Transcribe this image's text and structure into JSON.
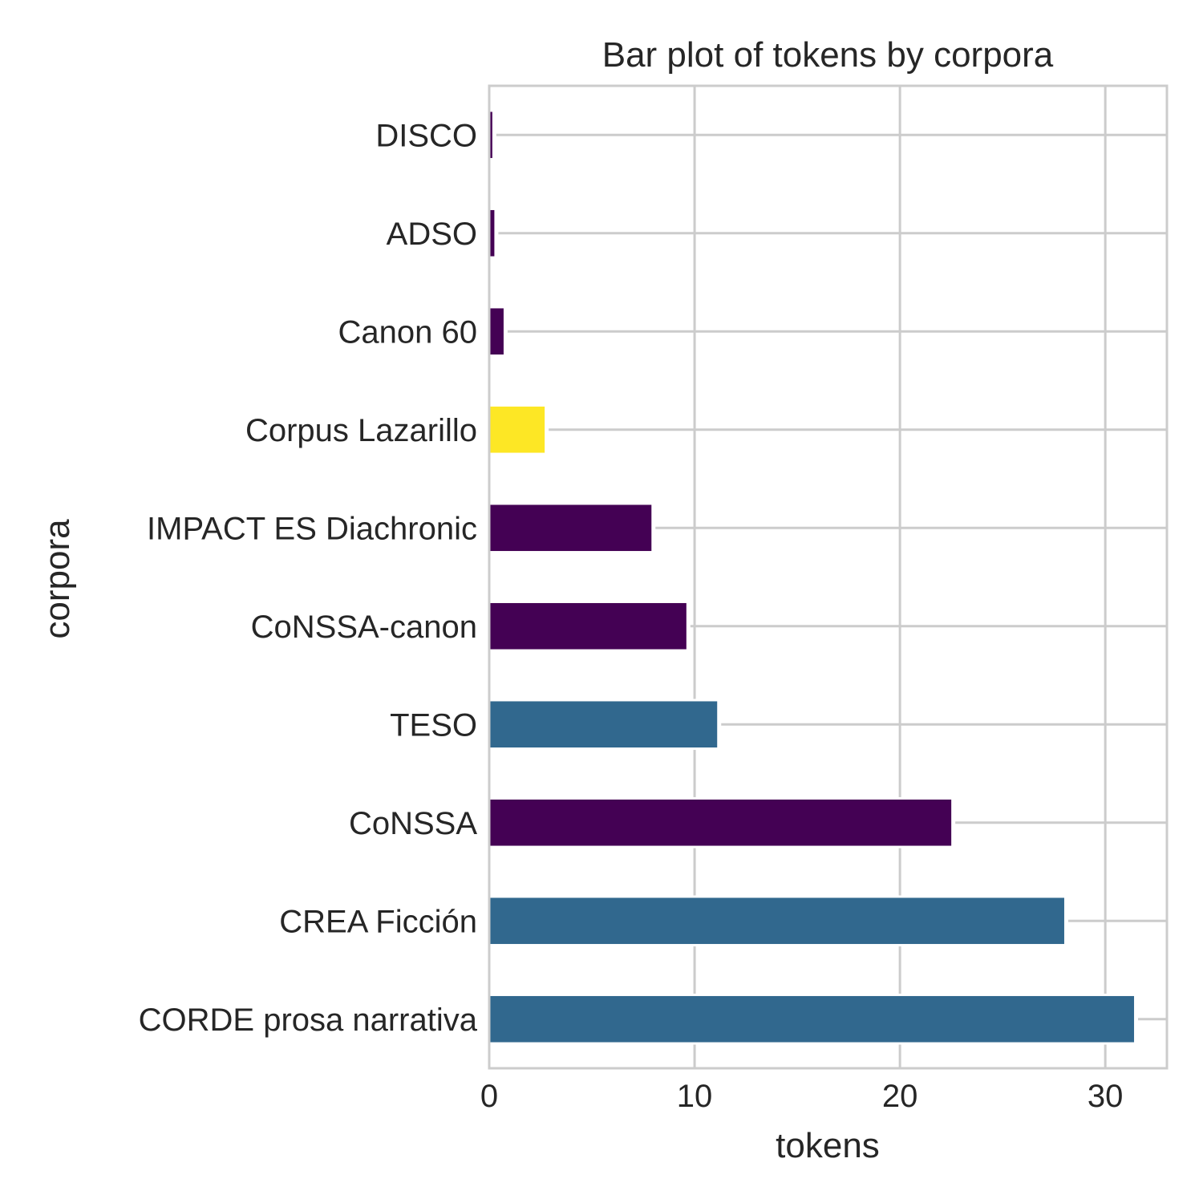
{
  "chart_data": {
    "type": "bar",
    "orientation": "horizontal",
    "title": "Bar plot of tokens by corpora",
    "xlabel": "tokens",
    "ylabel": "corpora",
    "categories": [
      "CORDE prosa narrativa",
      "CREA Ficción",
      "CoNSSA",
      "TESO",
      "CoNSSA-canon",
      "IMPACT ES Diachronic",
      "Corpus Lazarillo",
      "Canon 60",
      "ADSO",
      "DISCO"
    ],
    "values": [
      31.4,
      28.0,
      22.5,
      11.1,
      9.6,
      7.9,
      2.7,
      0.7,
      0.25,
      0.15
    ],
    "colors": [
      "#31688e",
      "#31688e",
      "#440154",
      "#31688e",
      "#440154",
      "#440154",
      "#fde725",
      "#440154",
      "#440154",
      "#440154"
    ],
    "xlim": [
      0,
      33
    ],
    "xticks": [
      0,
      10,
      20,
      30
    ],
    "grid": true
  }
}
